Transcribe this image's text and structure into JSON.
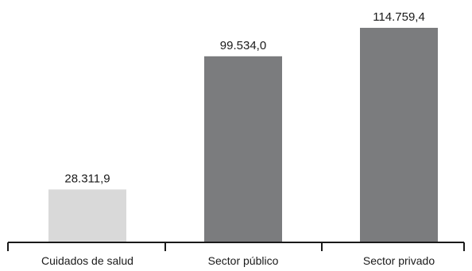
{
  "chart_data": {
    "type": "bar",
    "categories": [
      "Cuidados de salud",
      "Sector público",
      "Sector privado"
    ],
    "values": [
      28311.9,
      99534.0,
      114759.4
    ],
    "value_labels": [
      "28.311,9",
      "99.534,0",
      "114.759,4"
    ],
    "bar_colors": [
      "#d9d9d9",
      "#7b7c7e",
      "#7b7c7e"
    ],
    "ylim": [
      0,
      114759.4
    ],
    "title": "",
    "xlabel": "",
    "ylabel": "",
    "grid": false,
    "legend": "none"
  }
}
